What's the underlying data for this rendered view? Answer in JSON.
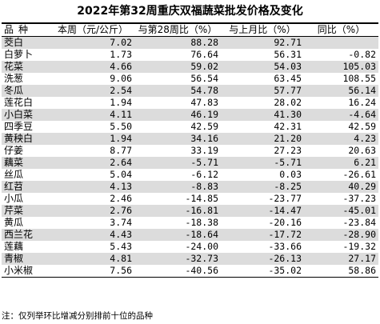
{
  "title": "2022年第32周重庆双福蔬菜批发价格及变化",
  "headers": {
    "name": "品种",
    "price": "本周（元/公斤）",
    "vs_week28": "与第28周比（%）",
    "vs_last_month": "与上月比（%）",
    "yoy": "同比（%）"
  },
  "rows": [
    {
      "name": "茭白",
      "price": "7.02",
      "vs_week28": "88.28",
      "vs_last_month": "92.71",
      "yoy": ""
    },
    {
      "name": "白萝卜",
      "price": "1.73",
      "vs_week28": "76.64",
      "vs_last_month": "56.31",
      "yoy": "-0.82"
    },
    {
      "name": "花菜",
      "price": "4.66",
      "vs_week28": "59.02",
      "vs_last_month": "54.03",
      "yoy": "105.03"
    },
    {
      "name": "洗葱",
      "price": "9.06",
      "vs_week28": "56.54",
      "vs_last_month": "63.45",
      "yoy": "108.55"
    },
    {
      "name": "冬瓜",
      "price": "2.54",
      "vs_week28": "54.78",
      "vs_last_month": "57.77",
      "yoy": "56.14"
    },
    {
      "name": "莲花白",
      "price": "1.94",
      "vs_week28": "47.83",
      "vs_last_month": "28.02",
      "yoy": "16.24"
    },
    {
      "name": "小白菜",
      "price": "4.11",
      "vs_week28": "46.19",
      "vs_last_month": "41.30",
      "yoy": "-4.64"
    },
    {
      "name": "四季豆",
      "price": "5.50",
      "vs_week28": "42.59",
      "vs_last_month": "42.31",
      "yoy": "42.59"
    },
    {
      "name": "黄秧白",
      "price": "1.94",
      "vs_week28": "34.16",
      "vs_last_month": "21.20",
      "yoy": "4.23"
    },
    {
      "name": "仔姜",
      "price": "8.77",
      "vs_week28": "33.19",
      "vs_last_month": "27.23",
      "yoy": "20.63"
    },
    {
      "name": "藕菜",
      "price": "2.64",
      "vs_week28": "-5.71",
      "vs_last_month": "-5.71",
      "yoy": "6.21"
    },
    {
      "name": "丝瓜",
      "price": "5.04",
      "vs_week28": "-6.12",
      "vs_last_month": "0.03",
      "yoy": "-26.61"
    },
    {
      "name": "红苕",
      "price": "4.13",
      "vs_week28": "-8.83",
      "vs_last_month": "-8.25",
      "yoy": "40.29"
    },
    {
      "name": "小瓜",
      "price": "2.46",
      "vs_week28": "-14.85",
      "vs_last_month": "-23.77",
      "yoy": "-37.23"
    },
    {
      "name": "芹菜",
      "price": "2.76",
      "vs_week28": "-16.81",
      "vs_last_month": "-14.47",
      "yoy": "-45.01"
    },
    {
      "name": "黄瓜",
      "price": "3.74",
      "vs_week28": "-18.38",
      "vs_last_month": "-20.16",
      "yoy": "-23.84"
    },
    {
      "name": "西兰花",
      "price": "4.43",
      "vs_week28": "-18.64",
      "vs_last_month": "-17.72",
      "yoy": "-28.90"
    },
    {
      "name": "莲藕",
      "price": "5.43",
      "vs_week28": "-24.00",
      "vs_last_month": "-33.66",
      "yoy": "-19.32"
    },
    {
      "name": "青椒",
      "price": "4.81",
      "vs_week28": "-32.73",
      "vs_last_month": "-26.13",
      "yoy": "27.17"
    },
    {
      "name": "小米椒",
      "price": "7.56",
      "vs_week28": "-40.56",
      "vs_last_month": "-35.02",
      "yoy": "58.86"
    }
  ],
  "note": "注：仅列举环比增减分别排前十位的品种"
}
